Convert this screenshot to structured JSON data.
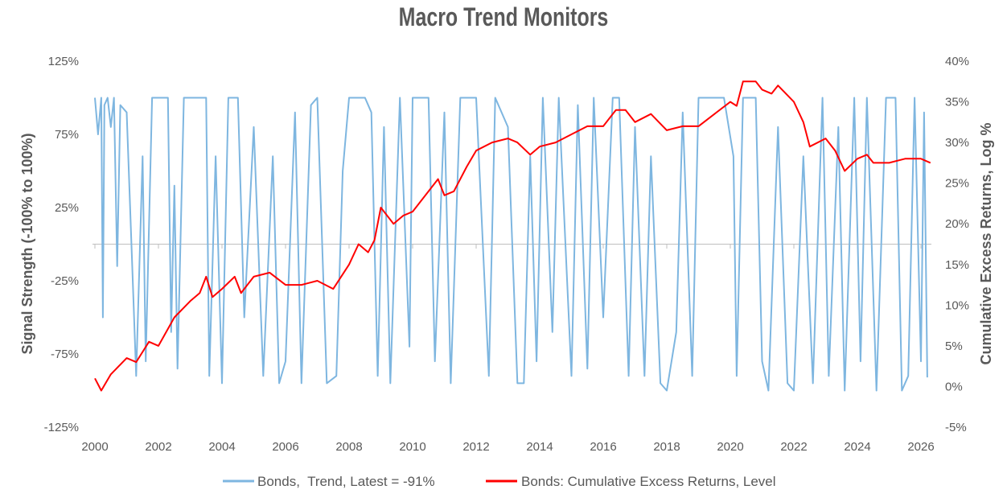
{
  "chart_data": {
    "type": "line",
    "title": "Macro Trend Monitors",
    "xlabel": "",
    "ylabel_left": "Signal Strength (-100% to 100%)",
    "ylabel_right": "Cumulative Excess Returns, Log %",
    "xlim": [
      2000,
      2026
    ],
    "x_ticks": [
      "2000",
      "2002",
      "2004",
      "2006",
      "2008",
      "2010",
      "2012",
      "2014",
      "2016",
      "2018",
      "2020",
      "2022",
      "2024",
      "2026"
    ],
    "ylim_left": [
      -125,
      125
    ],
    "y_ticks_left": [
      "125%",
      "75%",
      "25%",
      "-25%",
      "-75%",
      "-125%"
    ],
    "ylim_right": [
      -5,
      40
    ],
    "y_ticks_right": [
      "40%",
      "35%",
      "30%",
      "25%",
      "20%",
      "15%",
      "10%",
      "5%",
      "0%",
      "-5%"
    ],
    "legend_position": "bottom",
    "series": [
      {
        "name": "Bonds,  Trend, Latest = -91%",
        "axis": "left",
        "color": "#7EB6E0",
        "points": [
          [
            2000.0,
            100
          ],
          [
            2000.1,
            75
          ],
          [
            2000.2,
            100
          ],
          [
            2000.25,
            -50
          ],
          [
            2000.3,
            95
          ],
          [
            2000.4,
            100
          ],
          [
            2000.5,
            80
          ],
          [
            2000.6,
            100
          ],
          [
            2000.7,
            -15
          ],
          [
            2000.8,
            95
          ],
          [
            2001.0,
            90
          ],
          [
            2001.2,
            -30
          ],
          [
            2001.3,
            -90
          ],
          [
            2001.5,
            60
          ],
          [
            2001.6,
            -80
          ],
          [
            2001.8,
            100
          ],
          [
            2002.0,
            100
          ],
          [
            2002.3,
            100
          ],
          [
            2002.4,
            -60
          ],
          [
            2002.5,
            40
          ],
          [
            2002.6,
            -85
          ],
          [
            2002.8,
            100
          ],
          [
            2003.0,
            100
          ],
          [
            2003.5,
            100
          ],
          [
            2003.6,
            -90
          ],
          [
            2003.8,
            60
          ],
          [
            2004.0,
            -95
          ],
          [
            2004.2,
            100
          ],
          [
            2004.5,
            100
          ],
          [
            2004.7,
            -50
          ],
          [
            2005.0,
            80
          ],
          [
            2005.3,
            -90
          ],
          [
            2005.6,
            60
          ],
          [
            2005.8,
            -95
          ],
          [
            2006.0,
            -80
          ],
          [
            2006.3,
            90
          ],
          [
            2006.5,
            -95
          ],
          [
            2006.8,
            95
          ],
          [
            2007.0,
            100
          ],
          [
            2007.3,
            -95
          ],
          [
            2007.6,
            -90
          ],
          [
            2007.8,
            50
          ],
          [
            2008.0,
            100
          ],
          [
            2008.5,
            100
          ],
          [
            2008.7,
            90
          ],
          [
            2008.9,
            -90
          ],
          [
            2009.1,
            80
          ],
          [
            2009.3,
            -95
          ],
          [
            2009.6,
            100
          ],
          [
            2009.9,
            -70
          ],
          [
            2010.0,
            100
          ],
          [
            2010.5,
            100
          ],
          [
            2010.7,
            -80
          ],
          [
            2011.0,
            90
          ],
          [
            2011.2,
            -95
          ],
          [
            2011.5,
            100
          ],
          [
            2012.0,
            100
          ],
          [
            2012.4,
            -90
          ],
          [
            2012.6,
            100
          ],
          [
            2013.0,
            80
          ],
          [
            2013.3,
            -95
          ],
          [
            2013.5,
            -95
          ],
          [
            2013.7,
            60
          ],
          [
            2013.9,
            -80
          ],
          [
            2014.1,
            100
          ],
          [
            2014.4,
            -60
          ],
          [
            2014.6,
            100
          ],
          [
            2015.0,
            -90
          ],
          [
            2015.2,
            95
          ],
          [
            2015.5,
            -85
          ],
          [
            2015.7,
            100
          ],
          [
            2016.0,
            -50
          ],
          [
            2016.3,
            100
          ],
          [
            2016.5,
            100
          ],
          [
            2016.8,
            -90
          ],
          [
            2017.0,
            80
          ],
          [
            2017.3,
            -90
          ],
          [
            2017.5,
            60
          ],
          [
            2017.8,
            -95
          ],
          [
            2018.0,
            -100
          ],
          [
            2018.3,
            -60
          ],
          [
            2018.5,
            90
          ],
          [
            2018.8,
            -90
          ],
          [
            2019.0,
            100
          ],
          [
            2019.5,
            100
          ],
          [
            2019.8,
            100
          ],
          [
            2020.1,
            60
          ],
          [
            2020.2,
            -90
          ],
          [
            2020.4,
            100
          ],
          [
            2020.8,
            100
          ],
          [
            2021.0,
            -80
          ],
          [
            2021.2,
            -100
          ],
          [
            2021.5,
            80
          ],
          [
            2021.8,
            -95
          ],
          [
            2022.0,
            -100
          ],
          [
            2022.3,
            60
          ],
          [
            2022.6,
            -95
          ],
          [
            2022.9,
            100
          ],
          [
            2023.1,
            -90
          ],
          [
            2023.4,
            80
          ],
          [
            2023.6,
            -100
          ],
          [
            2023.9,
            100
          ],
          [
            2024.1,
            -80
          ],
          [
            2024.3,
            100
          ],
          [
            2024.6,
            -100
          ],
          [
            2024.9,
            100
          ],
          [
            2025.2,
            100
          ],
          [
            2025.4,
            -100
          ],
          [
            2025.6,
            -90
          ],
          [
            2025.8,
            100
          ],
          [
            2026.0,
            -80
          ],
          [
            2026.1,
            90
          ],
          [
            2026.2,
            -91
          ]
        ]
      },
      {
        "name": "Bonds: Cumulative Excess Returns, Level",
        "axis": "right",
        "color": "#FF0000",
        "points": [
          [
            2000.0,
            1
          ],
          [
            2000.2,
            -0.5
          ],
          [
            2000.5,
            1.5
          ],
          [
            2001.0,
            3.5
          ],
          [
            2001.3,
            3
          ],
          [
            2001.7,
            5.5
          ],
          [
            2002.0,
            5
          ],
          [
            2002.5,
            8.5
          ],
          [
            2003.0,
            10.5
          ],
          [
            2003.3,
            11.5
          ],
          [
            2003.5,
            13.5
          ],
          [
            2003.7,
            11
          ],
          [
            2004.0,
            12
          ],
          [
            2004.4,
            13.5
          ],
          [
            2004.6,
            11.5
          ],
          [
            2005.0,
            13.5
          ],
          [
            2005.5,
            14
          ],
          [
            2006.0,
            12.5
          ],
          [
            2006.5,
            12.5
          ],
          [
            2007.0,
            13
          ],
          [
            2007.5,
            12
          ],
          [
            2008.0,
            15
          ],
          [
            2008.3,
            17.5
          ],
          [
            2008.6,
            16.5
          ],
          [
            2008.8,
            18
          ],
          [
            2009.0,
            22
          ],
          [
            2009.4,
            20
          ],
          [
            2009.7,
            21
          ],
          [
            2010.0,
            21.5
          ],
          [
            2010.5,
            24
          ],
          [
            2010.8,
            25.5
          ],
          [
            2011.0,
            23.5
          ],
          [
            2011.3,
            24
          ],
          [
            2011.7,
            27
          ],
          [
            2012.0,
            29
          ],
          [
            2012.5,
            30
          ],
          [
            2013.0,
            30.5
          ],
          [
            2013.3,
            30
          ],
          [
            2013.7,
            28.5
          ],
          [
            2014.0,
            29.5
          ],
          [
            2014.5,
            30
          ],
          [
            2015.0,
            31
          ],
          [
            2015.5,
            32
          ],
          [
            2016.0,
            32
          ],
          [
            2016.4,
            34
          ],
          [
            2016.7,
            34
          ],
          [
            2017.0,
            32.5
          ],
          [
            2017.5,
            33.5
          ],
          [
            2018.0,
            31.5
          ],
          [
            2018.5,
            32
          ],
          [
            2019.0,
            32
          ],
          [
            2019.5,
            33.5
          ],
          [
            2020.0,
            35
          ],
          [
            2020.2,
            34.5
          ],
          [
            2020.4,
            37.5
          ],
          [
            2020.8,
            37.5
          ],
          [
            2021.0,
            36.5
          ],
          [
            2021.3,
            36
          ],
          [
            2021.5,
            37
          ],
          [
            2022.0,
            35
          ],
          [
            2022.3,
            32.5
          ],
          [
            2022.5,
            29.5
          ],
          [
            2023.0,
            30.5
          ],
          [
            2023.3,
            29
          ],
          [
            2023.6,
            26.5
          ],
          [
            2024.0,
            28
          ],
          [
            2024.3,
            28.5
          ],
          [
            2024.5,
            27.5
          ],
          [
            2025.0,
            27.5
          ],
          [
            2025.5,
            28
          ],
          [
            2026.0,
            28
          ],
          [
            2026.3,
            27.5
          ]
        ]
      }
    ]
  }
}
